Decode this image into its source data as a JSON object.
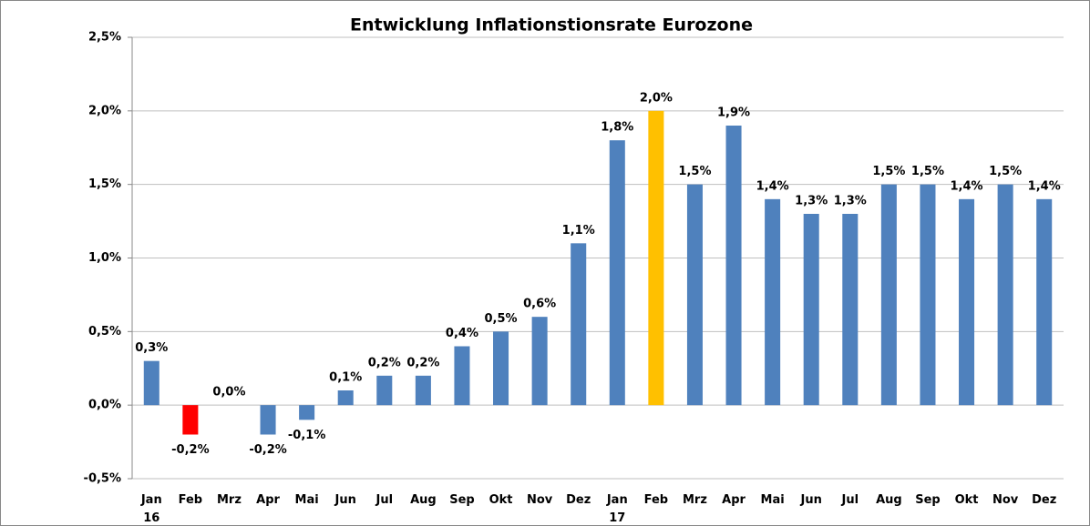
{
  "chart_data": {
    "type": "bar",
    "title": "Entwicklung Inflationstionsrate Eurozone",
    "categories": [
      "Jan\n16",
      "Feb",
      "Mrz",
      "Apr",
      "Mai",
      "Jun",
      "Jul",
      "Aug",
      "Sep",
      "Okt",
      "Nov",
      "Dez",
      "Jan\n17",
      "Feb",
      "Mrz",
      "Apr",
      "Mai",
      "Jun",
      "Jul",
      "Aug",
      "Sep",
      "Okt",
      "Nov",
      "Dez"
    ],
    "values": [
      0.3,
      -0.2,
      0.0,
      -0.2,
      -0.1,
      0.1,
      0.2,
      0.2,
      0.4,
      0.5,
      0.6,
      1.1,
      1.8,
      2.0,
      1.5,
      1.9,
      1.4,
      1.3,
      1.3,
      1.5,
      1.5,
      1.4,
      1.5,
      1.4
    ],
    "value_labels": [
      "0,3%",
      "-0,2%",
      "0,0%",
      "-0,2%",
      "-0,1%",
      "0,1%",
      "0,2%",
      "0,2%",
      "0,4%",
      "0,5%",
      "0,6%",
      "1,1%",
      "1,8%",
      "2,0%",
      "1,5%",
      "1,9%",
      "1,4%",
      "1,3%",
      "1,3%",
      "1,5%",
      "1,5%",
      "1,4%",
      "1,5%",
      "1,4%"
    ],
    "colors": [
      "#4f81bd",
      "#ff0000",
      "#4f81bd",
      "#4f81bd",
      "#4f81bd",
      "#4f81bd",
      "#4f81bd",
      "#4f81bd",
      "#4f81bd",
      "#4f81bd",
      "#4f81bd",
      "#4f81bd",
      "#4f81bd",
      "#ffc000",
      "#4f81bd",
      "#4f81bd",
      "#4f81bd",
      "#4f81bd",
      "#4f81bd",
      "#4f81bd",
      "#4f81bd",
      "#4f81bd",
      "#4f81bd",
      "#4f81bd"
    ],
    "ylim": [
      -0.5,
      2.5
    ],
    "yticks": [
      {
        "value": -0.5,
        "label": "-0,5%"
      },
      {
        "value": 0,
        "label": "0,0%"
      },
      {
        "value": 0.5,
        "label": "0,5%"
      },
      {
        "value": 1,
        "label": "1,0%"
      },
      {
        "value": 1.5,
        "label": "1,5%"
      },
      {
        "value": 2,
        "label": "2,0%"
      },
      {
        "value": 2.5,
        "label": "2,5%"
      }
    ],
    "grid": true
  }
}
